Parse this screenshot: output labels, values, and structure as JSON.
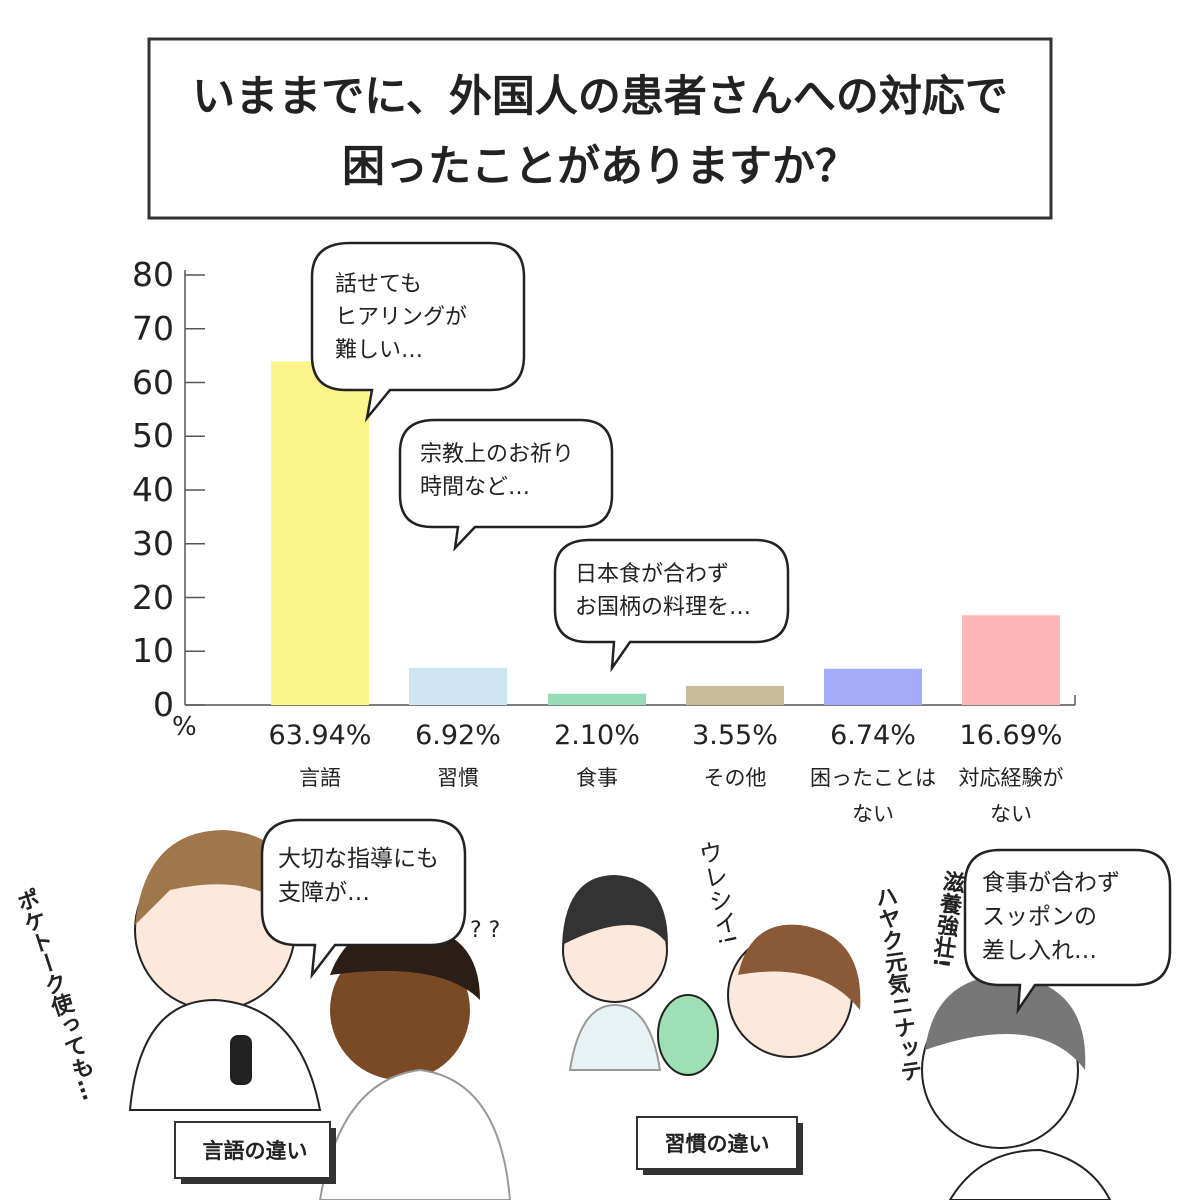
{
  "chart_data": {
    "type": "bar",
    "title": "いままでに、外国人の患者さんへの対応で\n困ったことがありますか？",
    "categories": [
      "言語",
      "習慣",
      "食事",
      "その他",
      "困ったことは\nない",
      "対応経験が\nない"
    ],
    "values": [
      63.94,
      6.92,
      2.1,
      3.55,
      6.74,
      16.69
    ],
    "value_labels": [
      "63.94%",
      "6.92%",
      "2.10%",
      "3.55%",
      "6.74%",
      "16.69%"
    ],
    "colors": [
      "#fdf58c",
      "#cde6f2",
      "#98dcb7",
      "#c9bc9a",
      "#a3abfb",
      "#feb6b7"
    ],
    "ylim": [
      0,
      80
    ],
    "yticks": [
      0,
      10,
      20,
      30,
      40,
      50,
      60,
      70,
      80
    ],
    "y_unit": "%",
    "annotations": [
      "話せても\nヒアリングが\n難しい…",
      "宗教上のお祈り\n時間など…",
      "日本食が合わず\nお国柄の料理を…"
    ]
  },
  "illustrations": {
    "bubbles": [
      "大切な指導にも\n支障が…",
      "食事が合わず\nスッポンの\n差し入れ…"
    ],
    "captions": [
      "言語の違い",
      "習慣の違い"
    ],
    "sound_effects": [
      "ポケトーク使っても…",
      "? ?",
      "ウレシイ!",
      "滋養強壮!",
      "ハヤク元気ニナッテ"
    ]
  }
}
